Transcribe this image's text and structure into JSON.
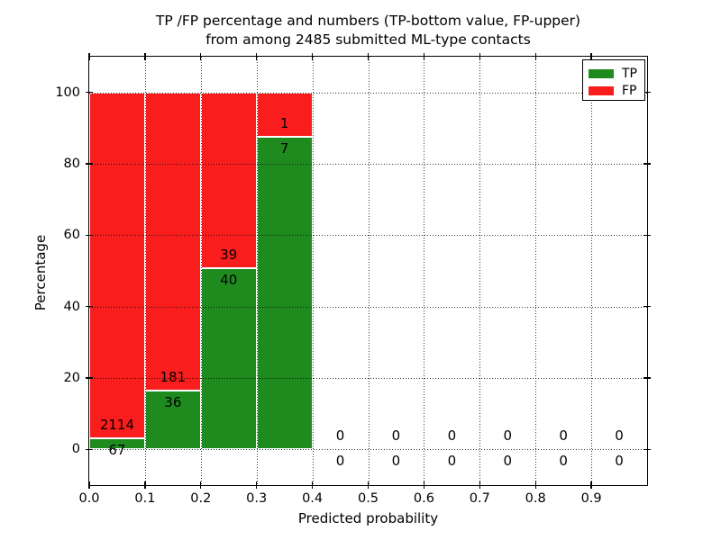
{
  "title": {
    "line1": "TP /FP percentage and numbers (TP-bottom value, FP-upper)",
    "line2": "from among 2485 submitted ML-type contacts"
  },
  "axes": {
    "xlabel": "Predicted probability",
    "ylabel": "Percentage",
    "ytick_labels": [
      "0",
      "20",
      "40",
      "60",
      "80",
      "100"
    ],
    "ytick_values": [
      0,
      20,
      40,
      60,
      80,
      100
    ],
    "xtick_labels": [
      "0.0",
      "0.1",
      "0.2",
      "0.3",
      "0.4",
      "0.5",
      "0.6",
      "0.7",
      "0.8",
      "0.9"
    ],
    "xtick_values": [
      0.0,
      0.1,
      0.2,
      0.3,
      0.4,
      0.5,
      0.6,
      0.7,
      0.8,
      0.9
    ],
    "ylim": [
      -10,
      110
    ],
    "xlim": [
      0,
      1
    ]
  },
  "legend": {
    "items": [
      {
        "label": "TP",
        "color": "#1f8b1f"
      },
      {
        "label": "FP",
        "color": "#fa1d1d"
      }
    ]
  },
  "chart_data": {
    "type": "bar",
    "stacked": true,
    "normalized": "each bin scaled to 100%, labels show raw counts",
    "title": "TP /FP percentage and numbers (TP-bottom value, FP-upper)\nfrom among 2485 submitted ML-type contacts",
    "xlabel": "Predicted probability",
    "ylabel": "Percentage",
    "xlim": [
      0,
      1
    ],
    "ylim": [
      -10,
      110
    ],
    "grid": true,
    "legend_position": "upper right",
    "bin_width": 0.1,
    "bin_starts": [
      0.0,
      0.1,
      0.2,
      0.3,
      0.4,
      0.5,
      0.6,
      0.7,
      0.8,
      0.9
    ],
    "series": [
      {
        "name": "TP",
        "color": "#1f8b1f",
        "counts": [
          67,
          36,
          40,
          7,
          0,
          0,
          0,
          0,
          0,
          0
        ]
      },
      {
        "name": "FP",
        "color": "#fa1d1d",
        "counts": [
          2114,
          181,
          39,
          1,
          0,
          0,
          0,
          0,
          0,
          0
        ]
      }
    ],
    "tp_percent_per_bin": [
      3.07,
      16.59,
      50.63,
      87.5,
      null,
      null,
      null,
      null,
      null,
      null
    ],
    "total_contacts": 2485
  }
}
